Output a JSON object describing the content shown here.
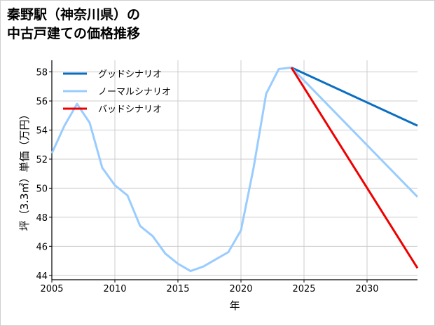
{
  "title_line1": "秦野駅（神奈川県）の",
  "title_line2": "中古戸建ての価格推移",
  "chart_data": {
    "type": "line",
    "title": "秦野駅（神奈川県）の中古戸建ての価格推移",
    "xlabel": "年",
    "ylabel": "坪（3.3㎡）単価（万円）",
    "xlim": [
      2005,
      2034
    ],
    "ylim": [
      43.7,
      58.8
    ],
    "x_ticks": [
      2005,
      2010,
      2015,
      2020,
      2025,
      2030
    ],
    "y_ticks": [
      44,
      46,
      48,
      50,
      52,
      54,
      56,
      58
    ],
    "grid": true,
    "legend_position": "upper left",
    "historical": {
      "x": [
        2005,
        2006,
        2007,
        2008,
        2009,
        2010,
        2011,
        2012,
        2013,
        2014,
        2015,
        2016,
        2017,
        2018,
        2019,
        2020,
        2021,
        2022,
        2023,
        2024
      ],
      "values": [
        52.4,
        54.3,
        55.8,
        54.5,
        51.4,
        50.2,
        49.5,
        47.4,
        46.7,
        45.5,
        44.8,
        44.3,
        44.6,
        45.1,
        45.6,
        47.1,
        51.4,
        56.5,
        58.2,
        58.3
      ]
    },
    "series": [
      {
        "name": "グッドシナリオ",
        "color": "#0a6fc2",
        "x": [
          2024,
          2034
        ],
        "values": [
          58.3,
          54.3
        ]
      },
      {
        "name": "ノーマルシナリオ",
        "color": "#99ccff",
        "x": [
          2024,
          2034
        ],
        "values": [
          58.3,
          49.4
        ]
      },
      {
        "name": "バッドシナリオ",
        "color": "#ee0000",
        "x": [
          2024,
          2034
        ],
        "values": [
          58.3,
          44.5
        ]
      }
    ]
  }
}
